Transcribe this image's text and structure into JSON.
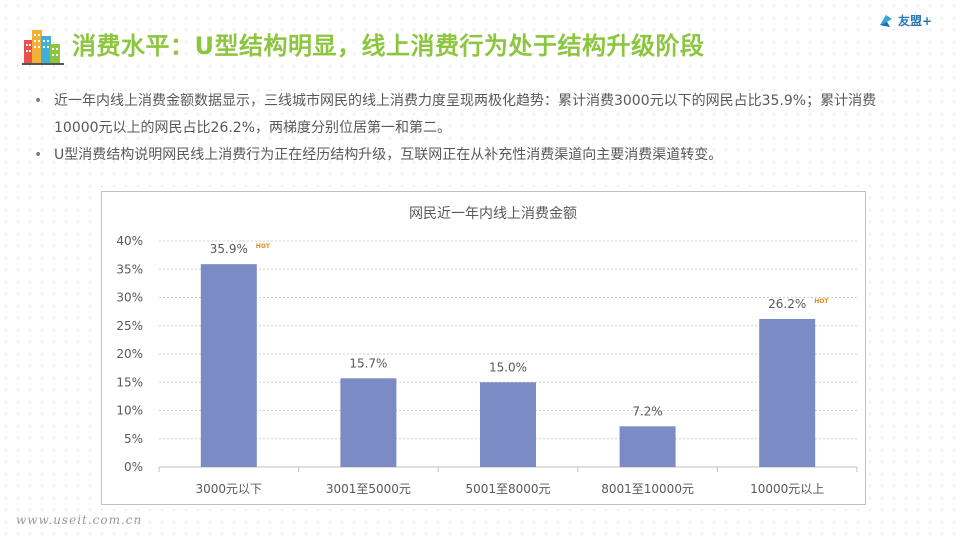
{
  "header": {
    "title": "消费水平：U型结构明显，线上消费行为处于结构升级阶段",
    "logo_text": "友盟+"
  },
  "bullets": [
    "近一年内线上消费金额数据显示，三线城市网民的线上消费力度呈现两极化趋势：累计消费3000元以下的网民占比35.9%；累计消费10000元以上的网民占比26.2%，两梯度分别位居第一和第二。",
    "U型消费结构说明网民线上消费行为正在经历结构升级，互联网正在从补充性消费渠道向主要消费渠道转变。"
  ],
  "chart_data": {
    "type": "bar",
    "title": "网民近一年内线上消费金额",
    "categories": [
      "3000元以下",
      "3001至5000元",
      "5001至8000元",
      "8001至10000元",
      "10000元以上"
    ],
    "values": [
      35.9,
      15.7,
      15.0,
      7.2,
      26.2
    ],
    "data_labels": [
      "35.9%",
      "15.7%",
      "15.0%",
      "7.2%",
      "26.2%"
    ],
    "ylim": [
      0,
      40
    ],
    "yticks": [
      "0%",
      "5%",
      "10%",
      "15%",
      "20%",
      "25%",
      "30%",
      "35%",
      "40%"
    ],
    "hot_badge": "HOT",
    "hot_indices": [
      0,
      4
    ],
    "grid": true,
    "bar_color": "#7b8bc4"
  },
  "watermark": "www.useit.com.cn"
}
